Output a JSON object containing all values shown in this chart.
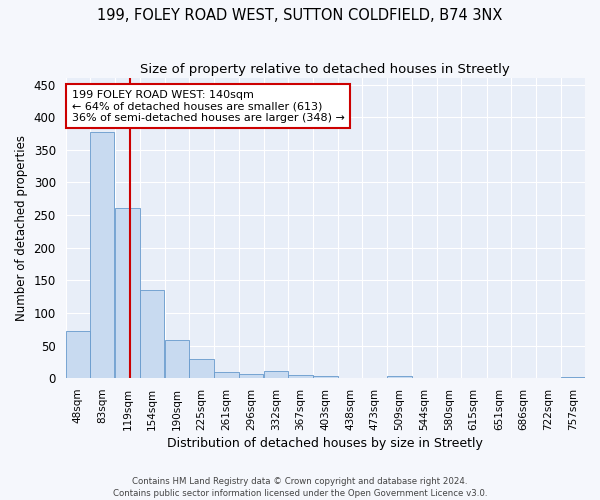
{
  "title_line1": "199, FOLEY ROAD WEST, SUTTON COLDFIELD, B74 3NX",
  "title_line2": "Size of property relative to detached houses in Streetly",
  "xlabel": "Distribution of detached houses by size in Streetly",
  "ylabel": "Number of detached properties",
  "bar_color": "#c8daf0",
  "bar_edge_color": "#6699cc",
  "background_color": "#e8eef8",
  "grid_color": "#ffffff",
  "annotation_line1": "199 FOLEY ROAD WEST: 140sqm",
  "annotation_line2": "← 64% of detached houses are smaller (613)",
  "annotation_line3": "36% of semi-detached houses are larger (348) →",
  "property_line_value": 140,
  "categories": [
    "48sqm",
    "83sqm",
    "119sqm",
    "154sqm",
    "190sqm",
    "225sqm",
    "261sqm",
    "296sqm",
    "332sqm",
    "367sqm",
    "403sqm",
    "438sqm",
    "473sqm",
    "509sqm",
    "544sqm",
    "580sqm",
    "615sqm",
    "651sqm",
    "686sqm",
    "722sqm",
    "757sqm"
  ],
  "bin_starts": [
    48,
    83,
    119,
    154,
    190,
    225,
    261,
    296,
    332,
    367,
    403,
    438,
    473,
    509,
    544,
    580,
    615,
    651,
    686,
    722,
    757
  ],
  "bin_width": 35,
  "bar_heights": [
    72,
    378,
    261,
    135,
    59,
    30,
    10,
    7,
    11,
    5,
    4,
    0,
    0,
    3,
    0,
    0,
    0,
    0,
    0,
    0,
    2
  ],
  "ylim": [
    0,
    460
  ],
  "yticks": [
    0,
    50,
    100,
    150,
    200,
    250,
    300,
    350,
    400,
    450
  ],
  "footer_text": "Contains HM Land Registry data © Crown copyright and database right 2024.\nContains public sector information licensed under the Open Government Licence v3.0.",
  "fig_background": "#f5f7fc",
  "property_line_color": "#cc0000",
  "annotation_box_facecolor": "#ffffff",
  "annotation_box_edgecolor": "#cc0000"
}
